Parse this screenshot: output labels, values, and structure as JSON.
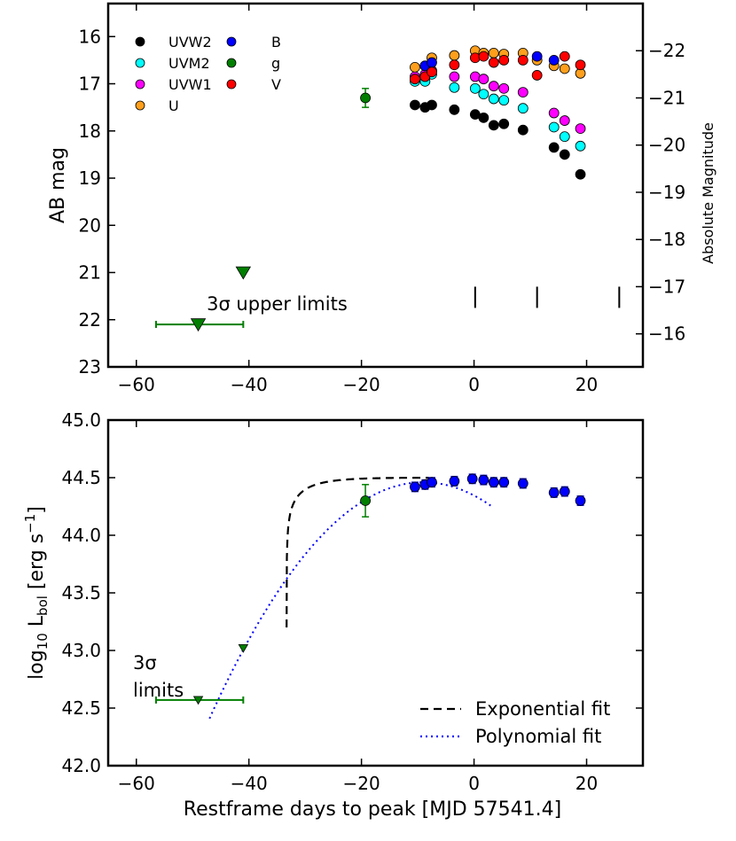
{
  "chart_data": [
    {
      "type": "scatter",
      "panel": "top",
      "xlabel": "",
      "ylabel": "AB mag",
      "y2label": "Absolute Magnitude",
      "xlim": [
        -65,
        30
      ],
      "ylim": [
        23,
        15.3
      ],
      "y_inverted": true,
      "x_ticks": [
        -60,
        -40,
        -20,
        0,
        20
      ],
      "x_tick_labels": [
        "−60",
        "−40",
        "−20",
        "0",
        "20"
      ],
      "y_ticks": [
        16,
        17,
        18,
        19,
        20,
        21,
        22,
        23
      ],
      "y_tick_labels": [
        "16",
        "17",
        "18",
        "19",
        "20",
        "21",
        "22",
        "23"
      ],
      "y2_ticks": [
        -22,
        -21,
        -20,
        -19,
        -18,
        -17,
        -16
      ],
      "y2_tick_labels": [
        "−22",
        "−21",
        "−20",
        "−19",
        "−18",
        "−17",
        "−16"
      ],
      "y2_offset": -38.3,
      "legend_position": "top-left",
      "series": [
        {
          "name": "UVW2",
          "color": "#000000",
          "x": [
            -10.5,
            -8.7,
            -7.5,
            -3.5,
            0.2,
            1.7,
            3.5,
            5.3,
            8.7,
            14.2,
            16.1,
            18.9
          ],
          "y": [
            17.45,
            17.5,
            17.45,
            17.55,
            17.65,
            17.72,
            17.88,
            17.85,
            17.98,
            18.35,
            18.5,
            18.92
          ]
        },
        {
          "name": "UVM2",
          "color": "#00ffff",
          "x": [
            -10.5,
            -8.7,
            -7.5,
            -3.5,
            0.2,
            1.7,
            3.5,
            5.3,
            8.7,
            14.2,
            16.1,
            18.9
          ],
          "y": [
            16.95,
            16.95,
            16.8,
            17.08,
            17.1,
            17.22,
            17.32,
            17.35,
            17.52,
            17.92,
            18.12,
            18.32
          ]
        },
        {
          "name": "UVW1",
          "color": "#ff00ff",
          "x": [
            -10.5,
            -8.7,
            -7.5,
            -3.5,
            0.2,
            1.7,
            3.5,
            5.3,
            8.7,
            14.2,
            16.1,
            18.9
          ],
          "y": [
            16.85,
            16.8,
            16.72,
            16.85,
            16.85,
            16.9,
            17.05,
            17.1,
            17.18,
            17.62,
            17.78,
            17.95
          ]
        },
        {
          "name": "U",
          "color": "#ff9f1c",
          "x": [
            -10.5,
            -8.7,
            -7.5,
            -3.5,
            0.2,
            1.7,
            3.5,
            5.3,
            8.7,
            11.2,
            14.2,
            16.1,
            18.9
          ],
          "y": [
            16.65,
            16.62,
            16.45,
            16.4,
            16.3,
            16.35,
            16.35,
            16.37,
            16.35,
            16.5,
            16.62,
            16.68,
            16.78
          ]
        },
        {
          "name": "B",
          "color": "#0000ff",
          "x": [
            -8.7,
            -7.5,
            11.2,
            14.2
          ],
          "y": [
            16.62,
            16.55,
            16.42,
            16.5
          ]
        },
        {
          "name": "g",
          "color": "#007f00",
          "x": [
            -19.3
          ],
          "y": [
            17.3
          ],
          "yerr": [
            0.2
          ]
        },
        {
          "name": "V",
          "color": "#ff0000",
          "x": [
            -10.5,
            -8.7,
            -7.5,
            -3.5,
            0.2,
            1.7,
            3.5,
            5.3,
            8.7,
            11.2,
            16.1,
            18.9
          ],
          "y": [
            16.9,
            16.85,
            16.75,
            16.6,
            16.45,
            16.42,
            16.55,
            16.5,
            16.5,
            16.82,
            16.42,
            16.6
          ]
        }
      ],
      "upper_limits": {
        "color": "#007f00",
        "points": [
          {
            "x": -41,
            "y": 21.0
          },
          {
            "x": -49,
            "y": 22.1,
            "xerr_low": 7.5,
            "xerr_high": 8
          }
        ]
      },
      "vertical_markers": {
        "x": [
          0.2,
          11.2,
          25.8
        ],
        "y_range": [
          21.3,
          21.75
        ]
      },
      "annotations": [
        {
          "text": "3σ upper limits",
          "x": -47.5,
          "y": 21.8
        }
      ]
    },
    {
      "type": "scatter",
      "panel": "bottom",
      "xlabel": "Restframe days to peak [MJD 57541.4]",
      "ylabel": "log10 Lbol [erg s−1]",
      "xlim": [
        -65,
        30
      ],
      "ylim": [
        42.0,
        45.0
      ],
      "x_ticks": [
        -60,
        -40,
        -20,
        0,
        20
      ],
      "x_tick_labels": [
        "−60",
        "−40",
        "−20",
        "0",
        "20"
      ],
      "y_ticks": [
        42.0,
        42.5,
        43.0,
        43.5,
        44.0,
        44.5,
        45.0
      ],
      "y_tick_labels": [
        "42.0",
        "42.5",
        "43.0",
        "43.5",
        "44.0",
        "44.5",
        "45.0"
      ],
      "legend_position": "bottom-right",
      "series": [
        {
          "name": "Lbol",
          "color": "#0000ff",
          "x": [
            -10.5,
            -8.7,
            -7.5,
            -3.5,
            -0.3,
            1.7,
            3.5,
            5.3,
            8.7,
            14.2,
            16.1,
            18.9
          ],
          "y": [
            44.42,
            44.44,
            44.46,
            44.47,
            44.49,
            44.48,
            44.46,
            44.46,
            44.45,
            44.37,
            44.38,
            44.3
          ],
          "yerr": [
            0.04,
            0.04,
            0.04,
            0.04,
            0.04,
            0.04,
            0.04,
            0.04,
            0.04,
            0.04,
            0.04,
            0.04
          ]
        },
        {
          "name": "g",
          "color": "#007f00",
          "x": [
            -19.3
          ],
          "y": [
            44.3
          ],
          "yerr": [
            0.14
          ]
        }
      ],
      "upper_limits": {
        "color": "#007f00",
        "points": [
          {
            "x": -41,
            "y": 43.02
          },
          {
            "x": -49,
            "y": 42.57,
            "xerr_low": 7.5,
            "xerr_high": 8
          }
        ]
      },
      "fits": [
        {
          "name": "Exponential fit",
          "style": "dashed",
          "color": "#000000",
          "t0": -33.3,
          "amplitude": 44.5,
          "scale": 0.355,
          "tau": 4.6,
          "x_end": -8
        },
        {
          "name": "Polynomial fit",
          "style": "dotted",
          "color": "#0000ff",
          "peak_x": -9.0,
          "peak_y": 44.46,
          "curvature": 0.00142,
          "x_start": -47,
          "x_end": 3.5
        }
      ],
      "legend": [
        {
          "name": "Exponential fit",
          "style": "dashed",
          "color": "#000000"
        },
        {
          "name": "Polynomial fit",
          "style": "dotted",
          "color": "#0000ff"
        }
      ],
      "annotations": [
        {
          "text_line1": "3σ",
          "text_line2": "limits"
        }
      ]
    }
  ]
}
